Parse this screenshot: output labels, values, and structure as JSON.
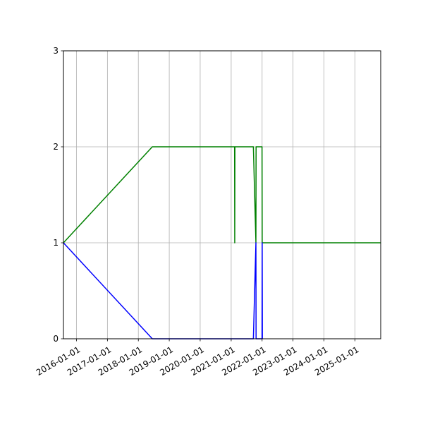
{
  "chart_data": {
    "type": "line",
    "title": "",
    "xlabel": "",
    "ylabel": "",
    "x_axis_type": "date",
    "xlim": [
      "2015-08-01",
      "2025-11-01"
    ],
    "ylim": [
      0,
      3
    ],
    "x_ticks": [
      "2016-01-01",
      "2017-01-01",
      "2018-01-01",
      "2019-01-01",
      "2020-01-01",
      "2021-01-01",
      "2022-01-01",
      "2023-01-01",
      "2024-01-01",
      "2025-01-01"
    ],
    "y_ticks": [
      0,
      1,
      2,
      3
    ],
    "x_tick_labels": [
      "2016-01-01",
      "2017-01-01",
      "2018-01-01",
      "2019-01-01",
      "2020-01-01",
      "2021-01-01",
      "2022-01-01",
      "2023-01-01",
      "2024-01-01",
      "2025-01-01"
    ],
    "y_tick_labels": [
      "0",
      "1",
      "2",
      "3"
    ],
    "x_tick_label_rotation": 30,
    "grid": true,
    "legend": "none",
    "series": [
      {
        "color": "#008000",
        "points": [
          {
            "x": "2015-08-01",
            "y": 1
          },
          {
            "x": "2018-06-15",
            "y": 2
          },
          {
            "x": "2021-02-10",
            "y": 2
          },
          {
            "x": "2021-02-12",
            "y": 1
          },
          {
            "x": "2021-02-14",
            "y": 2
          },
          {
            "x": "2021-09-20",
            "y": 2
          },
          {
            "x": "2021-10-20",
            "y": 1
          },
          {
            "x": "2021-10-22",
            "y": 2
          },
          {
            "x": "2021-12-31",
            "y": 2
          },
          {
            "x": "2022-01-02",
            "y": 1
          },
          {
            "x": "2025-11-01",
            "y": 1
          }
        ]
      },
      {
        "color": "#0000ff",
        "points": [
          {
            "x": "2015-08-01",
            "y": 1
          },
          {
            "x": "2018-06-15",
            "y": 0
          },
          {
            "x": "2021-09-20",
            "y": 0
          },
          {
            "x": "2021-10-20",
            "y": 1
          },
          {
            "x": "2021-10-22",
            "y": 0
          },
          {
            "x": "2021-12-31",
            "y": 0
          },
          {
            "x": "2022-01-02",
            "y": 1
          },
          {
            "x": "2022-01-04",
            "y": 0
          }
        ]
      }
    ]
  }
}
